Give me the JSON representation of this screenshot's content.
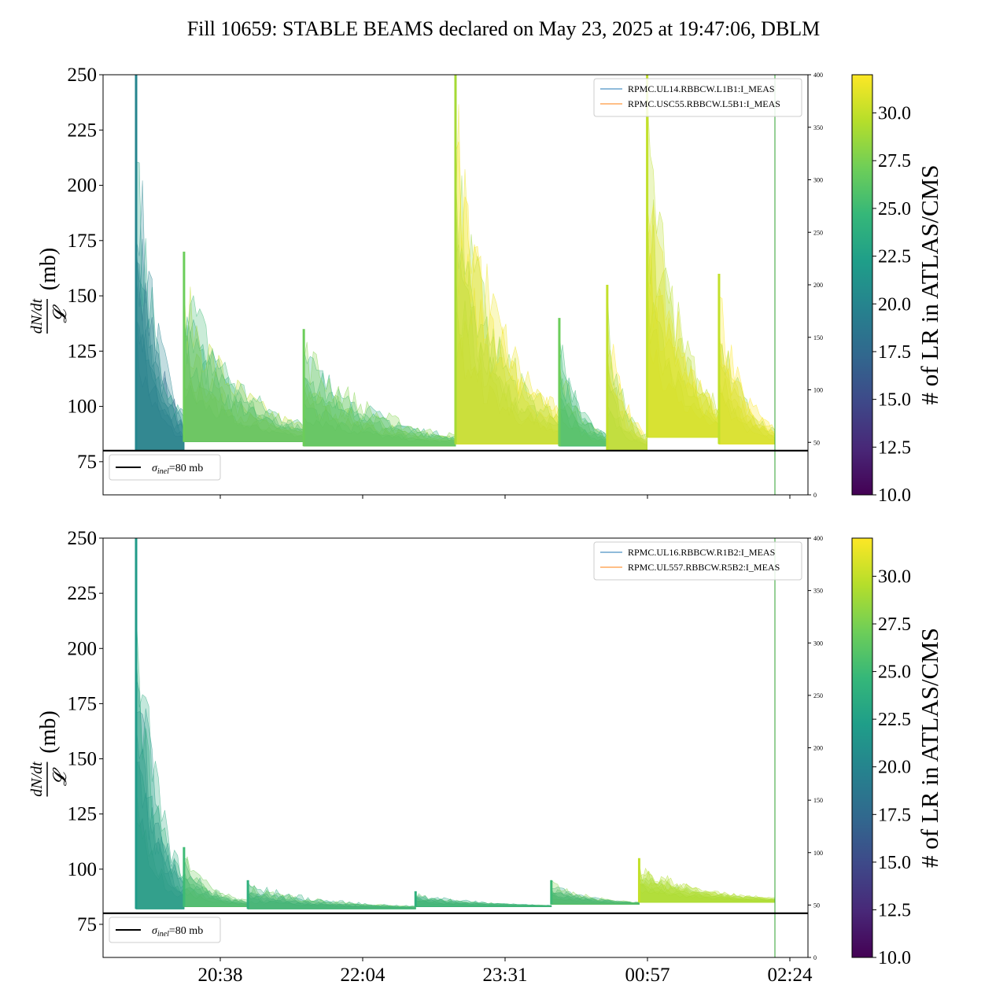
{
  "figure": {
    "title": "Fill 10659: STABLE BEAMS declared on May 23, 2025 at 19:47:06, DBLM"
  },
  "colors": {
    "viridis": [
      "#440154",
      "#482878",
      "#3e4989",
      "#31688e",
      "#26828e",
      "#1f9e89",
      "#35b779",
      "#6ece58",
      "#b5de2b",
      "#fde725"
    ],
    "reference_line": "#000000",
    "green_marker": "#2ca02c"
  },
  "chart_data": [
    {
      "type": "line",
      "name": "top-panel",
      "ylabel_num": "dN/dt",
      "ylabel_den": "𝓛",
      "ylabel_unit": "(mb)",
      "ylim": [
        60,
        250
      ],
      "yticks": [
        "75",
        "100",
        "125",
        "150",
        "175",
        "200",
        "225",
        "250"
      ],
      "y2lim": [
        0,
        400
      ],
      "y2ticks": [
        "0",
        "50",
        "100",
        "150",
        "200",
        "250",
        "300",
        "350",
        "400"
      ],
      "xticks_shown": false,
      "legend": [
        "RPMC.UL14.RBBCW.L1B1:I_MEAS",
        "RPMC.USC55.RBBCW.L5B1:I_MEAS"
      ],
      "legend_colors": [
        "#1f77b4",
        "#ff7f0e"
      ],
      "hline_label": "=80 mb",
      "hline_value": 80,
      "colorbar_label": "# of LR in ATLAS/CMS",
      "colorbar_range": [
        10.0,
        32.0
      ],
      "colorbar_ticks": [
        "10.0",
        "12.5",
        "15.0",
        "17.5",
        "20.0",
        "22.5",
        "25.0",
        "27.5",
        "30.0"
      ],
      "segments": [
        {
          "t": [
            0.0,
            0.6
          ],
          "base": 80,
          "peak": 250,
          "color": 20
        },
        {
          "t": [
            0.6,
            2.1
          ],
          "base": 84,
          "peak": 170,
          "color": 27
        },
        {
          "t": [
            2.1,
            4.0
          ],
          "base": 82,
          "peak": 135,
          "color": 27
        },
        {
          "t": [
            4.0,
            5.3
          ],
          "base": 83,
          "peak": 250,
          "color": 29
        },
        {
          "t": [
            5.3,
            5.9
          ],
          "base": 82,
          "peak": 140,
          "color": 27
        },
        {
          "t": [
            5.9,
            6.4
          ],
          "base": 80,
          "peak": 155,
          "color": 30
        },
        {
          "t": [
            6.4,
            7.3
          ],
          "base": 86,
          "peak": 250,
          "color": 30
        },
        {
          "t": [
            7.3,
            8.0
          ],
          "base": 83,
          "peak": 160,
          "color": 30
        }
      ]
    },
    {
      "type": "line",
      "name": "bottom-panel",
      "ylabel_num": "dN/dt",
      "ylabel_den": "𝓛",
      "ylabel_unit": "(mb)",
      "ylim": [
        60,
        250
      ],
      "yticks": [
        "75",
        "100",
        "125",
        "150",
        "175",
        "200",
        "225",
        "250"
      ],
      "y2lim": [
        0,
        400
      ],
      "y2ticks": [
        "0",
        "50",
        "100",
        "150",
        "200",
        "250",
        "300",
        "350",
        "400"
      ],
      "xticks": [
        "20:38",
        "22:04",
        "23:31",
        "00:57",
        "02:24"
      ],
      "legend": [
        "RPMC.UL16.RBBCW.R1B2:I_MEAS",
        "RPMC.UL557.RBBCW.R5B2:I_MEAS"
      ],
      "legend_colors": [
        "#1f77b4",
        "#ff7f0e"
      ],
      "hline_label": "=80 mb",
      "hline_value": 80,
      "colorbar_label": "# of LR in ATLAS/CMS",
      "colorbar_range": [
        10.0,
        32.0
      ],
      "colorbar_ticks": [
        "10.0",
        "12.5",
        "15.0",
        "17.5",
        "20.0",
        "22.5",
        "25.0",
        "27.5",
        "30.0"
      ],
      "segments": [
        {
          "t": [
            0.0,
            0.6
          ],
          "base": 82,
          "peak": 250,
          "color": 22
        },
        {
          "t": [
            0.6,
            1.4
          ],
          "base": 83,
          "peak": 110,
          "color": 25
        },
        {
          "t": [
            1.4,
            3.5
          ],
          "base": 82,
          "peak": 95,
          "color": 24
        },
        {
          "t": [
            3.5,
            5.2
          ],
          "base": 83,
          "peak": 90,
          "color": 24
        },
        {
          "t": [
            5.2,
            6.3
          ],
          "base": 84,
          "peak": 95,
          "color": 25
        },
        {
          "t": [
            6.3,
            8.0
          ],
          "base": 85,
          "peak": 105,
          "color": 30
        }
      ]
    }
  ]
}
